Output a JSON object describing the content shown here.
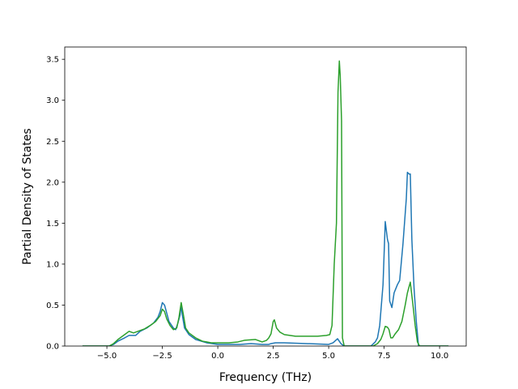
{
  "chart_data": {
    "type": "line",
    "title": "",
    "xlabel": "Frequency (THz)",
    "ylabel": "Partial Density of States",
    "xlim": [
      -6.9,
      11.2
    ],
    "ylim": [
      0.0,
      3.65
    ],
    "xticks": [
      -5.0,
      -2.5,
      0.0,
      2.5,
      5.0,
      7.5,
      10.0
    ],
    "xtick_labels": [
      "−5.0",
      "−2.5",
      "0.0",
      "2.5",
      "5.0",
      "7.5",
      "10.0"
    ],
    "yticks": [
      0.0,
      0.5,
      1.0,
      1.5,
      2.0,
      2.5,
      3.0,
      3.5
    ],
    "ytick_labels": [
      "0.0",
      "0.5",
      "1.0",
      "1.5",
      "2.0",
      "2.5",
      "3.0",
      "3.5"
    ],
    "grid": false,
    "legend": "none",
    "series": [
      {
        "color": "#1f77b4",
        "points": [
          [
            -6.1,
            0.0
          ],
          [
            -4.9,
            0.0
          ],
          [
            -4.7,
            0.02
          ],
          [
            -4.5,
            0.06
          ],
          [
            -4.2,
            0.1
          ],
          [
            -4.0,
            0.13
          ],
          [
            -3.7,
            0.13
          ],
          [
            -3.5,
            0.18
          ],
          [
            -3.2,
            0.22
          ],
          [
            -2.9,
            0.28
          ],
          [
            -2.7,
            0.35
          ],
          [
            -2.6,
            0.42
          ],
          [
            -2.5,
            0.53
          ],
          [
            -2.4,
            0.5
          ],
          [
            -2.3,
            0.4
          ],
          [
            -2.2,
            0.3
          ],
          [
            -2.0,
            0.22
          ],
          [
            -1.9,
            0.2
          ],
          [
            -1.8,
            0.28
          ],
          [
            -1.7,
            0.38
          ],
          [
            -1.65,
            0.5
          ],
          [
            -1.6,
            0.38
          ],
          [
            -1.5,
            0.22
          ],
          [
            -1.3,
            0.14
          ],
          [
            -1.0,
            0.08
          ],
          [
            -0.5,
            0.04
          ],
          [
            0.0,
            0.02
          ],
          [
            0.5,
            0.02
          ],
          [
            1.0,
            0.02
          ],
          [
            1.5,
            0.03
          ],
          [
            2.0,
            0.02
          ],
          [
            2.3,
            0.02
          ],
          [
            2.4,
            0.03
          ],
          [
            2.6,
            0.04
          ],
          [
            3.0,
            0.04
          ],
          [
            4.0,
            0.03
          ],
          [
            5.0,
            0.02
          ],
          [
            5.2,
            0.04
          ],
          [
            5.4,
            0.09
          ],
          [
            5.55,
            0.03
          ],
          [
            5.7,
            0.0
          ],
          [
            6.9,
            0.0
          ],
          [
            7.1,
            0.05
          ],
          [
            7.2,
            0.1
          ],
          [
            7.3,
            0.25
          ],
          [
            7.45,
            0.75
          ],
          [
            7.55,
            1.52
          ],
          [
            7.65,
            1.3
          ],
          [
            7.7,
            1.25
          ],
          [
            7.75,
            0.55
          ],
          [
            7.85,
            0.47
          ],
          [
            7.95,
            0.65
          ],
          [
            8.1,
            0.75
          ],
          [
            8.2,
            0.8
          ],
          [
            8.35,
            1.25
          ],
          [
            8.5,
            1.8
          ],
          [
            8.55,
            2.12
          ],
          [
            8.62,
            2.1
          ],
          [
            8.68,
            2.1
          ],
          [
            8.75,
            1.3
          ],
          [
            8.85,
            0.7
          ],
          [
            8.95,
            0.3
          ],
          [
            9.05,
            0.0
          ],
          [
            10.4,
            0.0
          ]
        ]
      },
      {
        "color": "#2ca02c",
        "points": [
          [
            -6.1,
            0.0
          ],
          [
            -4.9,
            0.0
          ],
          [
            -4.7,
            0.03
          ],
          [
            -4.5,
            0.08
          ],
          [
            -4.2,
            0.14
          ],
          [
            -4.0,
            0.18
          ],
          [
            -3.8,
            0.16
          ],
          [
            -3.6,
            0.18
          ],
          [
            -3.3,
            0.21
          ],
          [
            -3.0,
            0.26
          ],
          [
            -2.8,
            0.3
          ],
          [
            -2.6,
            0.37
          ],
          [
            -2.5,
            0.45
          ],
          [
            -2.4,
            0.42
          ],
          [
            -2.3,
            0.33
          ],
          [
            -2.15,
            0.25
          ],
          [
            -2.0,
            0.2
          ],
          [
            -1.85,
            0.22
          ],
          [
            -1.75,
            0.35
          ],
          [
            -1.65,
            0.53
          ],
          [
            -1.55,
            0.38
          ],
          [
            -1.45,
            0.22
          ],
          [
            -1.3,
            0.16
          ],
          [
            -1.0,
            0.1
          ],
          [
            -0.7,
            0.06
          ],
          [
            -0.3,
            0.04
          ],
          [
            0.0,
            0.04
          ],
          [
            0.5,
            0.04
          ],
          [
            0.9,
            0.05
          ],
          [
            1.2,
            0.07
          ],
          [
            1.7,
            0.08
          ],
          [
            2.0,
            0.05
          ],
          [
            2.2,
            0.07
          ],
          [
            2.3,
            0.1
          ],
          [
            2.4,
            0.15
          ],
          [
            2.5,
            0.3
          ],
          [
            2.55,
            0.32
          ],
          [
            2.65,
            0.22
          ],
          [
            2.8,
            0.17
          ],
          [
            3.0,
            0.14
          ],
          [
            3.5,
            0.12
          ],
          [
            4.0,
            0.12
          ],
          [
            4.5,
            0.12
          ],
          [
            4.9,
            0.13
          ],
          [
            5.05,
            0.14
          ],
          [
            5.15,
            0.25
          ],
          [
            5.25,
            1.0
          ],
          [
            5.35,
            1.5
          ],
          [
            5.42,
            3.1
          ],
          [
            5.48,
            3.48
          ],
          [
            5.52,
            3.3
          ],
          [
            5.58,
            2.75
          ],
          [
            5.62,
            0.1
          ],
          [
            5.7,
            0.0
          ],
          [
            7.0,
            0.0
          ],
          [
            7.2,
            0.03
          ],
          [
            7.35,
            0.08
          ],
          [
            7.45,
            0.15
          ],
          [
            7.55,
            0.24
          ],
          [
            7.65,
            0.23
          ],
          [
            7.72,
            0.2
          ],
          [
            7.8,
            0.1
          ],
          [
            7.88,
            0.1
          ],
          [
            8.0,
            0.15
          ],
          [
            8.15,
            0.2
          ],
          [
            8.3,
            0.3
          ],
          [
            8.45,
            0.5
          ],
          [
            8.55,
            0.65
          ],
          [
            8.6,
            0.7
          ],
          [
            8.68,
            0.78
          ],
          [
            8.8,
            0.5
          ],
          [
            8.9,
            0.25
          ],
          [
            9.0,
            0.05
          ],
          [
            9.1,
            0.0
          ],
          [
            10.4,
            0.0
          ]
        ]
      }
    ]
  }
}
